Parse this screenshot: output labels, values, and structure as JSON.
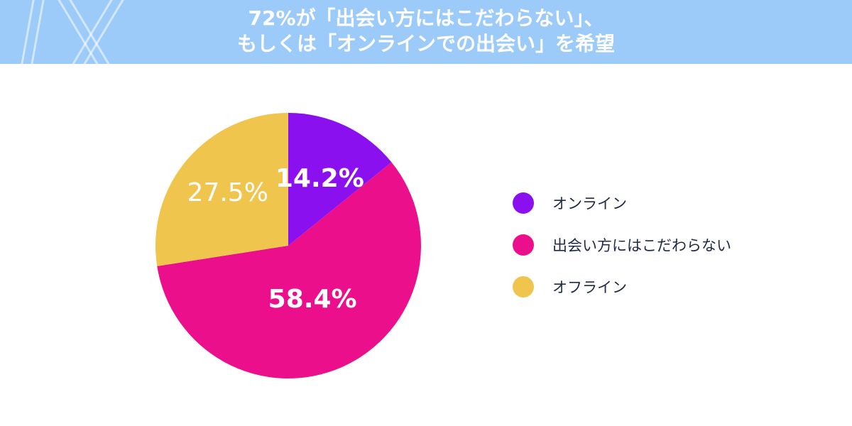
{
  "header": {
    "title_line1": "72%が「出会い方にはこだわらない」、",
    "title_line2": "もしくは「オンラインでの出会い」を希望",
    "logo_icon": "brand-logo-icon"
  },
  "colors": {
    "header_bg": "#9ccbfa",
    "online": "#8b10ef",
    "either": "#ec0f8c",
    "offline": "#f0c54e"
  },
  "chart_data": {
    "type": "pie",
    "title": "",
    "slices": [
      {
        "name": "オンライン",
        "value": 14.2,
        "label": "14.2%",
        "color": "#8b10ef"
      },
      {
        "name": "出会い方にはこだわらない",
        "value": 58.4,
        "label": "58.4%",
        "color": "#ec0f8c"
      },
      {
        "name": "オフライン",
        "value": 27.5,
        "label": "27.5%",
        "color": "#f0c54e"
      }
    ],
    "start_angle": "top",
    "direction": "clockwise",
    "legend_placement": "right"
  }
}
